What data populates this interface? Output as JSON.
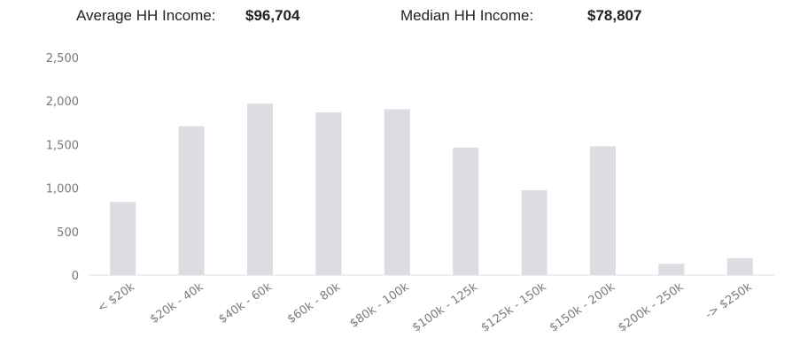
{
  "summary": {
    "avg_label": "Average HH Income:",
    "avg_value": "$96,704",
    "median_label": "Median HH Income:",
    "median_value": "$78,807"
  },
  "colors": {
    "bar": "#dcdde3",
    "tick_text": "#7a7a7a"
  },
  "chart_data": {
    "type": "bar",
    "categories": [
      "< $20k",
      "$20k - 40k",
      "$40k - 60k",
      "$60k - 80k",
      "$80k - 100k",
      "$100k - 125k",
      "$125k - 150k",
      "$150k - 200k",
      "$200k - 250k",
      "-> $250k"
    ],
    "values": [
      840,
      1710,
      1970,
      1870,
      1905,
      1465,
      975,
      1480,
      130,
      195
    ],
    "yticks": [
      0,
      500,
      1000,
      1500,
      2000,
      2500
    ],
    "ytick_labels": [
      "0",
      "500",
      "1,000",
      "1,500",
      "2,000",
      "2,500"
    ],
    "ylim": [
      0,
      2500
    ],
    "title": "",
    "xlabel": "",
    "ylabel": "",
    "grid": false
  }
}
